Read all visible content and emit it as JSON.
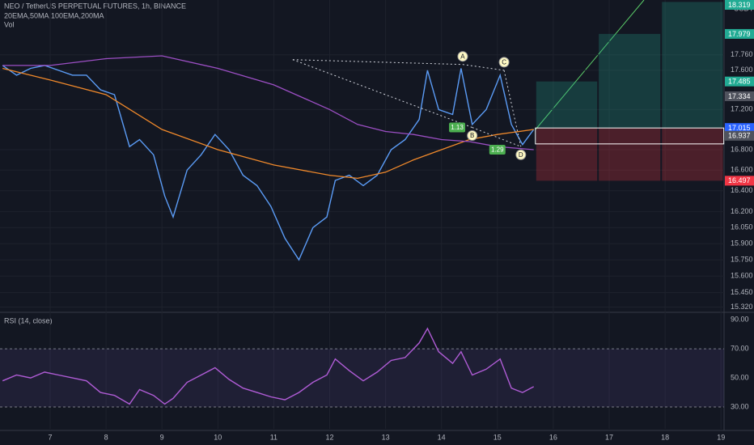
{
  "chart_data": [
    {
      "type": "line",
      "title": "NEO / TetherUS PERPETUAL FUTURES, 1h, BINANCE",
      "subtitle": "20EMA,50MA,100EMA,200MA",
      "volume_label": "Vol",
      "currency": "USDT",
      "log": true,
      "grid": true,
      "xlim": [
        6.103,
        19.055
      ],
      "xticks": [
        7,
        8,
        9,
        10,
        11,
        12,
        13,
        14,
        15,
        16,
        17,
        18,
        19
      ],
      "ylim": [
        15.28,
        18.34
      ],
      "yticks": [
        {
          "value": 17.76,
          "label": "17.760"
        },
        {
          "value": 17.6,
          "label": "17.600"
        },
        {
          "value": 17.2,
          "label": "17.200"
        },
        {
          "value": 16.8,
          "label": "16.800"
        },
        {
          "value": 16.6,
          "label": "16.600"
        },
        {
          "value": 16.4,
          "label": "16.400"
        },
        {
          "value": 16.2,
          "label": "16.200"
        },
        {
          "value": 16.05,
          "label": "16.050"
        },
        {
          "value": 15.9,
          "label": "15.900"
        },
        {
          "value": 15.75,
          "label": "15.750"
        },
        {
          "value": 15.6,
          "label": "15.600"
        },
        {
          "value": 15.45,
          "label": "15.450"
        },
        {
          "value": 15.32,
          "label": "15.320"
        }
      ],
      "x": [
        6.15,
        6.4,
        6.65,
        6.9,
        7.15,
        7.4,
        7.65,
        7.9,
        8.15,
        8.42,
        8.6,
        8.85,
        9.05,
        9.2,
        9.45,
        9.7,
        9.95,
        10.2,
        10.45,
        10.7,
        10.95,
        11.2,
        11.45,
        11.7,
        11.95,
        12.1,
        12.35,
        12.6,
        12.85,
        13.1,
        13.35,
        13.6,
        13.75,
        13.95,
        14.2,
        14.35,
        14.55,
        14.8,
        15.05,
        15.25,
        15.45,
        15.65
      ],
      "series": [
        {
          "color": "#5b9cf6",
          "values": [
            17.65,
            17.55,
            17.62,
            17.65,
            17.6,
            17.55,
            17.55,
            17.4,
            17.35,
            16.83,
            16.9,
            16.75,
            16.35,
            16.15,
            16.6,
            16.75,
            16.95,
            16.8,
            16.55,
            16.45,
            16.25,
            15.95,
            15.75,
            16.05,
            16.15,
            16.5,
            16.55,
            16.45,
            16.55,
            16.8,
            16.9,
            17.1,
            17.6,
            17.2,
            17.15,
            17.62,
            17.05,
            17.2,
            17.55,
            17.05,
            16.85,
            17.0
          ]
        },
        {
          "color": "#f0892b",
          "x": [
            6.15,
            7,
            8,
            9,
            10,
            11,
            12,
            12.5,
            13,
            13.5,
            14,
            14.5,
            15,
            15.65
          ],
          "values": [
            17.62,
            17.5,
            17.35,
            17.0,
            16.8,
            16.65,
            16.55,
            16.52,
            16.58,
            16.7,
            16.8,
            16.9,
            16.95,
            17.0
          ]
        },
        {
          "color": "#9c4fc4",
          "x": [
            6.15,
            7,
            8,
            9,
            10,
            11,
            12,
            12.5,
            13,
            13.5,
            14,
            14.5,
            15,
            15.65
          ],
          "values": [
            17.65,
            17.65,
            17.72,
            17.75,
            17.62,
            17.45,
            17.2,
            17.05,
            16.98,
            16.95,
            16.9,
            16.88,
            16.83,
            16.8
          ]
        }
      ],
      "pattern": {
        "start": {
          "x": 11.34,
          "value": 17.71
        },
        "points": [
          {
            "label": "A",
            "x": 14.38,
            "value": 17.66
          },
          {
            "label": "B",
            "x": 14.55,
            "value": 17.02
          },
          {
            "label": "C",
            "x": 15.12,
            "value": 17.6
          },
          {
            "label": "D",
            "x": 15.42,
            "value": 16.83
          }
        ],
        "ratios": [
          {
            "ratio": 1.13,
            "x": 14.28,
            "value": 17.02
          },
          {
            "ratio": 1.29,
            "x": 15.0,
            "value": 16.8
          }
        ]
      },
      "position": {
        "x": [
          15.68,
          16.8,
          17.93,
          19.05
        ],
        "entry": {
          "value": 17.015,
          "label": "17.015",
          "color": "#2962ff"
        },
        "stop": {
          "value": 16.497,
          "label": "16.497",
          "color": "#f23645"
        },
        "targets": [
          {
            "value": 17.485,
            "label": "17.485",
            "color": "#22ab94"
          },
          {
            "value": 17.979,
            "label": "17.979",
            "color": "#22ab94"
          },
          {
            "value": 18.319,
            "label": "18.319",
            "color": "#22ab94"
          }
        ]
      },
      "price_markers": [
        {
          "value": 17.334,
          "label": "17.334",
          "color": "#50535e"
        },
        {
          "value": 16.937,
          "label": "16.937",
          "color": "#50535e"
        }
      ]
    },
    {
      "type": "line",
      "title": "RSI (14, close)",
      "xlim": [
        6.103,
        19.055
      ],
      "ylim": [
        15,
        94
      ],
      "yticks": [
        {
          "value": 90,
          "label": "90.00"
        },
        {
          "value": 70,
          "label": "70.00"
        },
        {
          "value": 50,
          "label": "50.00"
        },
        {
          "value": 30,
          "label": "30.00"
        }
      ],
      "band": [
        30,
        70
      ],
      "x": [
        6.15,
        6.4,
        6.65,
        6.9,
        7.15,
        7.4,
        7.65,
        7.9,
        8.15,
        8.42,
        8.6,
        8.85,
        9.05,
        9.2,
        9.45,
        9.7,
        9.95,
        10.2,
        10.45,
        10.7,
        10.95,
        11.2,
        11.45,
        11.7,
        11.95,
        12.1,
        12.35,
        12.6,
        12.85,
        13.1,
        13.35,
        13.6,
        13.75,
        13.95,
        14.2,
        14.35,
        14.55,
        14.8,
        15.05,
        15.25,
        15.45,
        15.65
      ],
      "series": [
        {
          "color": "#b05cd6",
          "values": [
            48,
            52,
            50,
            54,
            52,
            50,
            48,
            40,
            38,
            32,
            42,
            38,
            32,
            36,
            47,
            52,
            57,
            49,
            43,
            40,
            37,
            35,
            40,
            47,
            52,
            63,
            55,
            48,
            54,
            62,
            64,
            74,
            84,
            68,
            60,
            68,
            52,
            56,
            63,
            43,
            40,
            44
          ]
        }
      ]
    }
  ]
}
